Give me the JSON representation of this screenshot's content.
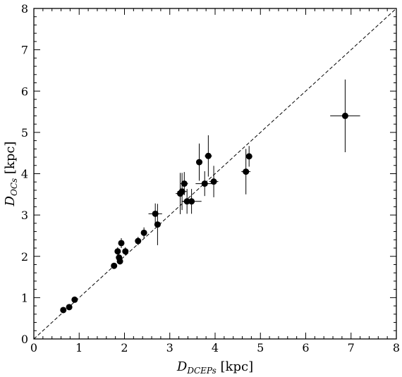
{
  "chart_data": {
    "type": "scatter",
    "xlabel": {
      "main": "D",
      "sub": "DCEPs",
      "unit": " [kpc]"
    },
    "ylabel": {
      "main": "D",
      "sub": "OCs",
      "unit": " [kpc]"
    },
    "xlim": [
      0,
      8
    ],
    "ylim": [
      0,
      8
    ],
    "x_ticks": [
      "0",
      "1",
      "2",
      "3",
      "4",
      "5",
      "6",
      "7",
      "8"
    ],
    "y_ticks": [
      "0",
      "1",
      "2",
      "3",
      "4",
      "5",
      "6",
      "7",
      "8"
    ],
    "reference_line": {
      "style": "dashed",
      "from": [
        0,
        0
      ],
      "to": [
        8,
        8
      ]
    },
    "grid": false,
    "points": [
      {
        "x": 0.65,
        "y": 0.7,
        "xerr": 0.03,
        "yerr": 0.03
      },
      {
        "x": 0.78,
        "y": 0.77,
        "xerr": 0.03,
        "yerr": 0.04
      },
      {
        "x": 0.9,
        "y": 0.95,
        "xerr": 0.03,
        "yerr": 0.05
      },
      {
        "x": 1.77,
        "y": 1.77,
        "xerr": 0.05,
        "yerr": 0.07
      },
      {
        "x": 1.85,
        "y": 2.12,
        "xerr": 0.05,
        "yerr": 0.1
      },
      {
        "x": 1.88,
        "y": 1.97,
        "xerr": 0.05,
        "yerr": 0.08
      },
      {
        "x": 1.9,
        "y": 1.88,
        "xerr": 0.05,
        "yerr": 0.08
      },
      {
        "x": 1.93,
        "y": 2.32,
        "xerr": 0.05,
        "yerr": 0.12
      },
      {
        "x": 2.02,
        "y": 2.12,
        "xerr": 0.05,
        "yerr": 0.1
      },
      {
        "x": 2.3,
        "y": 2.37,
        "xerr": 0.06,
        "yerr": 0.1
      },
      {
        "x": 2.43,
        "y": 2.57,
        "xerr": 0.06,
        "yerr": 0.13
      },
      {
        "x": 2.68,
        "y": 3.03,
        "xerr": 0.15,
        "yerr": 0.25
      },
      {
        "x": 2.73,
        "y": 2.77,
        "xerr": 0.07,
        "yerr": 0.5
      },
      {
        "x": 3.23,
        "y": 3.52,
        "xerr": 0.1,
        "yerr": 0.5
      },
      {
        "x": 3.27,
        "y": 3.57,
        "xerr": 0.1,
        "yerr": 0.45
      },
      {
        "x": 3.32,
        "y": 3.76,
        "xerr": 0.08,
        "yerr": 0.28
      },
      {
        "x": 3.38,
        "y": 3.33,
        "xerr": 0.1,
        "yerr": 0.3
      },
      {
        "x": 3.48,
        "y": 3.33,
        "xerr": 0.22,
        "yerr": 0.3
      },
      {
        "x": 3.65,
        "y": 4.28,
        "xerr": 0.07,
        "yerr": 0.45
      },
      {
        "x": 3.77,
        "y": 3.76,
        "xerr": 0.2,
        "yerr": 0.3
      },
      {
        "x": 3.85,
        "y": 4.43,
        "xerr": 0.08,
        "yerr": 0.5
      },
      {
        "x": 3.97,
        "y": 3.81,
        "xerr": 0.1,
        "yerr": 0.38
      },
      {
        "x": 4.68,
        "y": 4.05,
        "xerr": 0.1,
        "yerr": 0.55
      },
      {
        "x": 4.75,
        "y": 4.42,
        "xerr": 0.07,
        "yerr": 0.25
      },
      {
        "x": 6.87,
        "y": 5.4,
        "xerr": 0.33,
        "yerr": 0.88
      }
    ]
  }
}
